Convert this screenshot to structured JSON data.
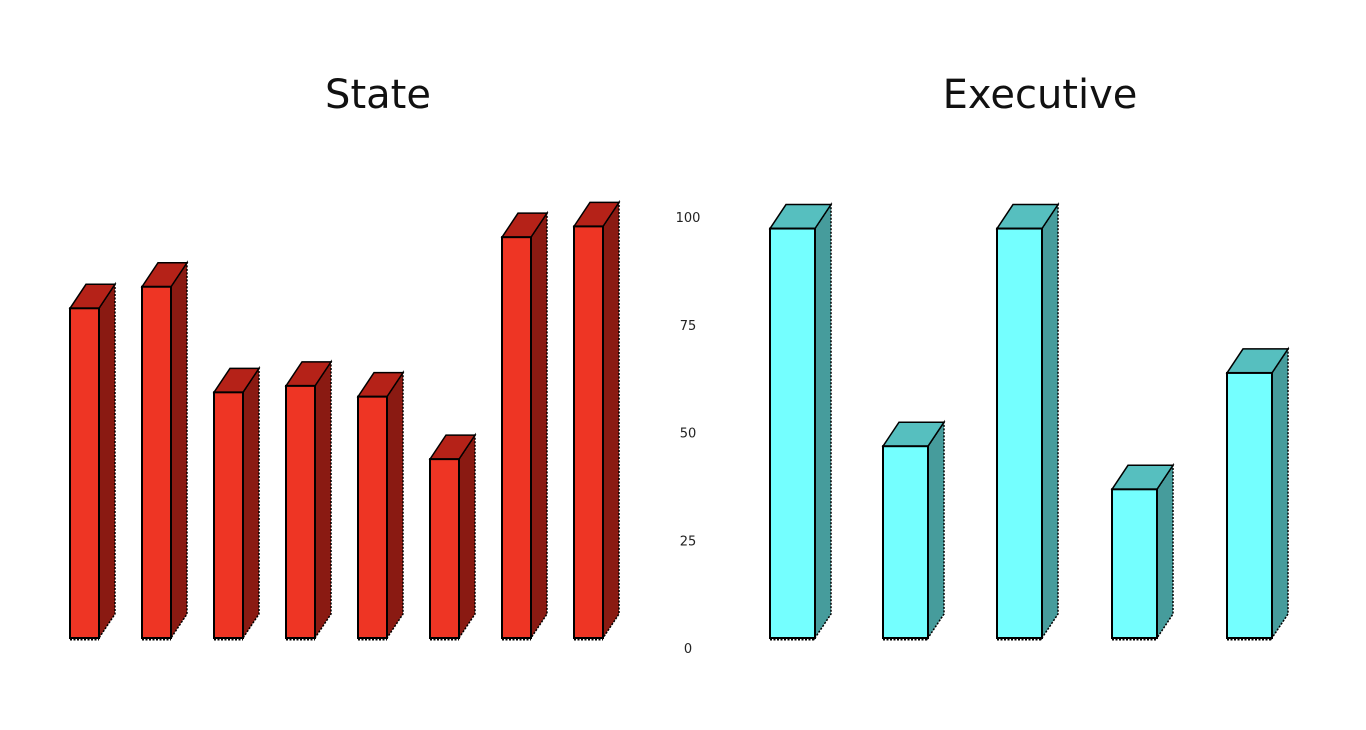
{
  "chart_data": [
    {
      "type": "bar",
      "title": "State",
      "values": [
        76.5,
        81.5,
        57,
        58.5,
        56,
        41.5,
        93,
        95.5
      ],
      "ylim": [
        0,
        100
      ],
      "yticks": [
        "0",
        "25",
        "50",
        "75",
        "100"
      ],
      "colors": {
        "front": "#EE3524",
        "top": "#B52218",
        "side": "#8A1A12"
      }
    },
    {
      "type": "bar",
      "title": "Executive",
      "values": [
        95,
        44.5,
        95,
        34.5,
        61.5
      ],
      "ylim": [
        0,
        100
      ],
      "yticks": [
        "0",
        "25",
        "50",
        "75",
        "100"
      ],
      "colors": {
        "front": "#74FFFF",
        "top": "#56BFBF",
        "side": "#469C9C"
      }
    }
  ]
}
